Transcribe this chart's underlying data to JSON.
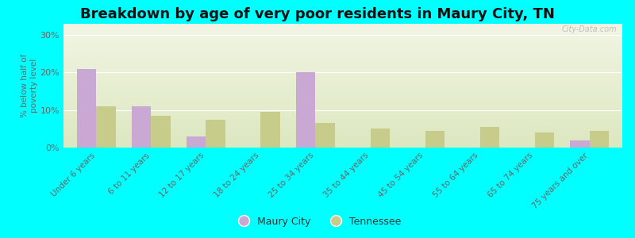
{
  "title": "Breakdown by age of very poor residents in Maury City, TN",
  "ylabel": "% below half of\npoverty level",
  "categories": [
    "Under 6 years",
    "6 to 11 years",
    "12 to 17 years",
    "18 to 24 years",
    "25 to 34 years",
    "35 to 44 years",
    "45 to 54 years",
    "55 to 64 years",
    "65 to 74 years",
    "75 years and over"
  ],
  "maury_city": [
    21,
    11,
    3,
    0,
    20,
    0,
    0,
    0,
    0,
    2
  ],
  "tennessee": [
    11,
    8.5,
    7.5,
    9.5,
    6.5,
    5,
    4.5,
    5.5,
    4,
    4.5
  ],
  "maury_color": "#c9a8d4",
  "tennessee_color": "#c8cc8a",
  "background_color": "#00ffff",
  "plot_bg_top": "#f2f5e4",
  "plot_bg_bottom": "#dce8c0",
  "yticks": [
    0,
    10,
    20,
    30
  ],
  "ylim": [
    0,
    33
  ],
  "title_fontsize": 13,
  "axis_label_fontsize": 7.5,
  "tick_fontsize": 8,
  "legend_fontsize": 9,
  "watermark": "City-Data.com"
}
